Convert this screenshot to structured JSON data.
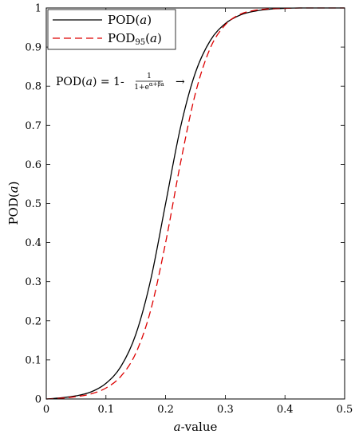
{
  "chart_data": {
    "type": "line",
    "title": "",
    "xlabel": "a-value",
    "ylabel": "POD(a)",
    "xlim": [
      0,
      0.5
    ],
    "ylim": [
      0,
      1
    ],
    "x_ticks": [
      0,
      0.1,
      0.2,
      0.3,
      0.4,
      0.5
    ],
    "x_tick_labels": [
      "0",
      "0.1",
      "0.2",
      "0.3",
      "0.4",
      "0.5"
    ],
    "y_ticks": [
      0,
      0.1,
      0.2,
      0.3,
      0.4,
      0.5,
      0.6,
      0.7,
      0.8,
      0.9,
      1
    ],
    "y_tick_labels": [
      "0",
      "0.1",
      "0.2",
      "0.3",
      "0.4",
      "0.5",
      "0.6",
      "0.7",
      "0.8",
      "0.9",
      "1"
    ],
    "grid": false,
    "legend_position": "top-left",
    "annotation": {
      "prefix": "POD(a) = 1-",
      "numerator": "1",
      "denominator": "1+e^(α+βa)",
      "arrow": "→"
    },
    "x": [
      0,
      0.025,
      0.05,
      0.075,
      0.1,
      0.125,
      0.15,
      0.175,
      0.2,
      0.225,
      0.25,
      0.275,
      0.3,
      0.325,
      0.35,
      0.375,
      0.4,
      0.425,
      0.45,
      0.475,
      0.5
    ],
    "series": [
      {
        "name": "POD(a)",
        "color": "#000000",
        "dash": "solid",
        "values": [
          0.0,
          0.003,
          0.008,
          0.018,
          0.04,
          0.083,
          0.165,
          0.305,
          0.5,
          0.695,
          0.835,
          0.917,
          0.96,
          0.982,
          0.992,
          0.997,
          0.999,
          1.0,
          1.0,
          1.0,
          1.0
        ]
      },
      {
        "name": "POD95(a)",
        "color": "#dd0000",
        "dash": "dashed",
        "values": [
          0.0,
          0.002,
          0.006,
          0.013,
          0.028,
          0.058,
          0.117,
          0.227,
          0.4,
          0.604,
          0.782,
          0.898,
          0.957,
          0.984,
          0.994,
          0.998,
          0.999,
          1.0,
          1.0,
          1.0,
          1.0
        ]
      }
    ]
  }
}
